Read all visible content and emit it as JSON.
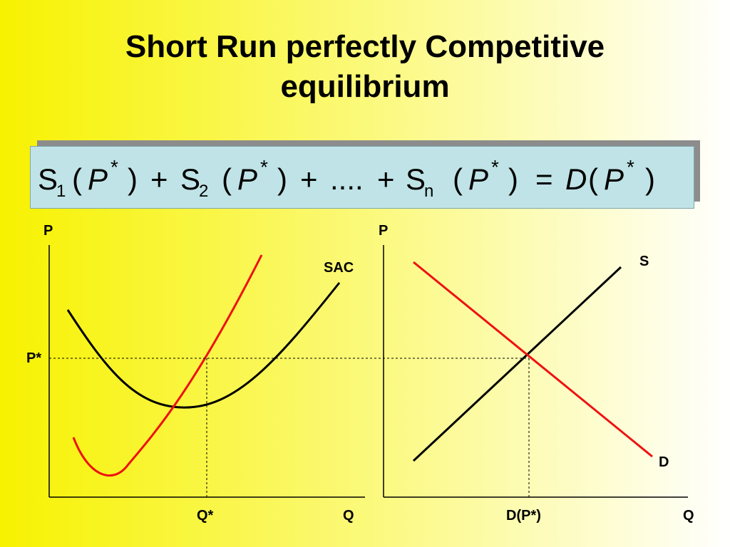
{
  "title": {
    "line1": "Short Run perfectly Competitive",
    "line2": "equilibrium"
  },
  "equation": {
    "s": "S",
    "sub1": "1",
    "sub2": "2",
    "subn": "n",
    "open": "(",
    "close": ")",
    "p": "P",
    "star": "*",
    "plus": "+",
    "dots": "....",
    "equals": "=",
    "d": "D"
  },
  "left_panel": {
    "y_axis_label": "P",
    "x_axis_label": "Q",
    "price_label": "P*",
    "quantity_label": "Q*",
    "curve_label": "SAC"
  },
  "right_panel": {
    "y_axis_label": "P",
    "x_axis_label": "Q",
    "supply_label": "S",
    "demand_label": "D",
    "quantity_label": "D(P*)"
  },
  "colors": {
    "background_left": "#f7f200",
    "background_right": "#ffffff",
    "equation_box": "#bfe3e6",
    "equation_shadow": "#8c8c8c",
    "red_curve": "#ee1111",
    "black_curve": "#000000"
  }
}
